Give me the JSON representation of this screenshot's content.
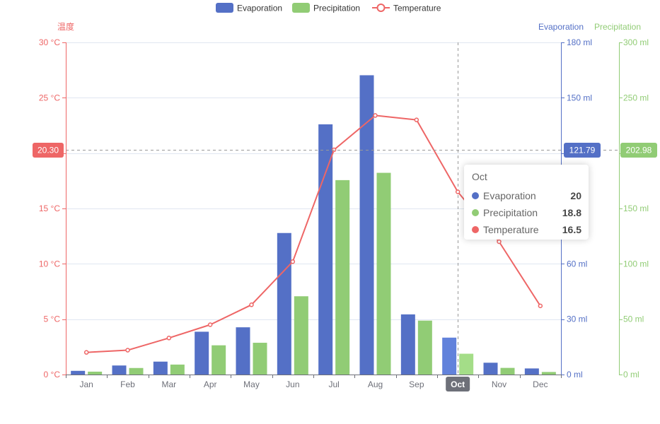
{
  "chart_data": {
    "type": "bar",
    "categories": [
      "Jan",
      "Feb",
      "Mar",
      "Apr",
      "May",
      "Jun",
      "Jul",
      "Aug",
      "Sep",
      "Oct",
      "Nov",
      "Dec"
    ],
    "series": [
      {
        "name": "Evaporation",
        "type": "bar",
        "axis": "evaporation",
        "color": "#5470c6",
        "values": [
          2.0,
          4.9,
          7.0,
          23.2,
          25.6,
          76.7,
          135.6,
          162.2,
          32.6,
          20.0,
          6.4,
          3.3
        ]
      },
      {
        "name": "Precipitation",
        "type": "bar",
        "axis": "precipitation",
        "color": "#91cc75",
        "values": [
          2.6,
          5.9,
          9.0,
          26.4,
          28.7,
          70.7,
          175.6,
          182.2,
          48.7,
          18.8,
          6.0,
          2.3
        ]
      },
      {
        "name": "Temperature",
        "type": "line",
        "axis": "temperature",
        "color": "#ee6666",
        "values": [
          2.0,
          2.2,
          3.3,
          4.5,
          6.3,
          10.2,
          20.3,
          23.4,
          23.0,
          16.5,
          12.0,
          6.2
        ]
      }
    ],
    "axes": {
      "temperature": {
        "name": "温度",
        "ylim": [
          0,
          30
        ],
        "ticks": [
          0,
          5,
          10,
          15,
          20,
          25,
          30
        ],
        "unit": "°C",
        "color": "#ee6666"
      },
      "evaporation": {
        "name": "Evaporation",
        "ylim": [
          0,
          180
        ],
        "ticks": [
          0,
          30,
          60,
          90,
          120,
          150,
          180
        ],
        "unit": "ml",
        "color": "#5470c6"
      },
      "precipitation": {
        "name": "Precipitation",
        "ylim": [
          0,
          300
        ],
        "ticks": [
          0,
          50,
          100,
          150,
          200,
          250,
          300
        ],
        "unit": "ml",
        "color": "#91cc75"
      }
    },
    "legend": {
      "position": "top-center"
    },
    "grid": true,
    "cursor": {
      "category": "Oct",
      "temperature_label": "20.30",
      "evaporation_label": "121.79",
      "precipitation_label": "202.98"
    },
    "tooltip": {
      "title": "Oct",
      "rows": [
        {
          "name": "Evaporation",
          "value": "20",
          "color": "#5470c6"
        },
        {
          "name": "Precipitation",
          "value": "18.8",
          "color": "#91cc75"
        },
        {
          "name": "Temperature",
          "value": "16.5",
          "color": "#ee6666"
        }
      ]
    }
  }
}
